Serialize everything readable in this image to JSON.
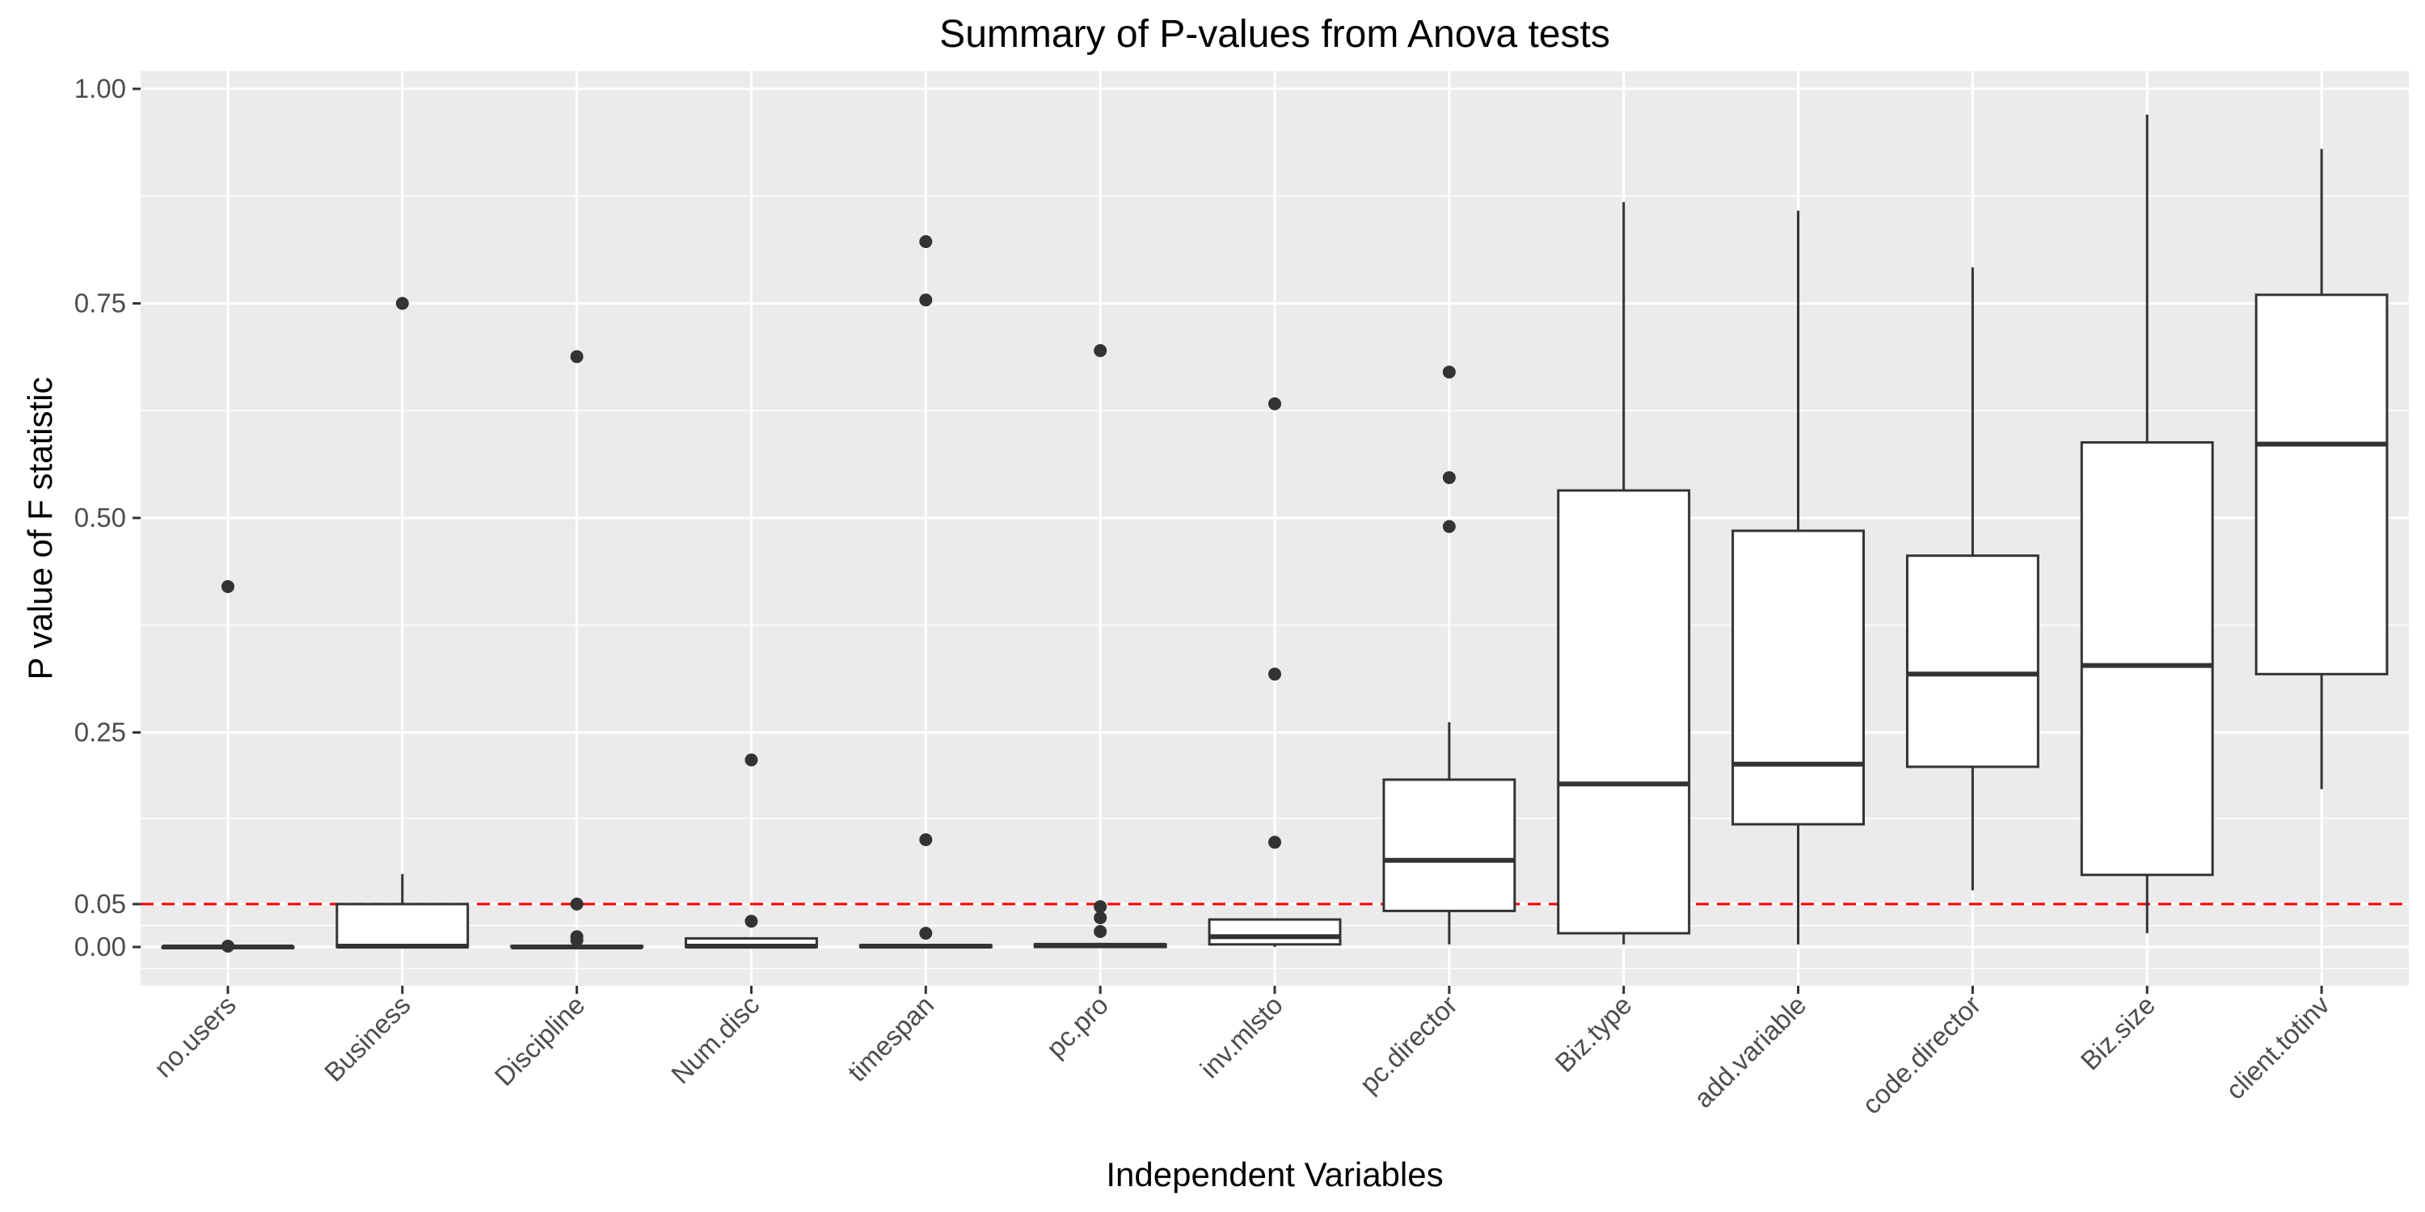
{
  "chart_data": {
    "type": "boxplot",
    "title": "Summary of P-values from Anova tests",
    "xlabel": "Independent Variables",
    "ylabel": "P value of F statistic",
    "ylim": [
      -0.05,
      1.03
    ],
    "y_ticks": [
      0.0,
      0.05,
      0.25,
      0.5,
      0.75,
      1.0
    ],
    "y_tick_labels": [
      "0.00",
      "0.05",
      "0.25",
      "0.50",
      "0.75",
      "1.00"
    ],
    "reference_line": {
      "y": 0.05,
      "color": "#ff0000",
      "style": "dashed"
    },
    "grid": true,
    "panel_background": "#ebebeb",
    "categories": [
      "no.users",
      "Business",
      "Discipline",
      "Num.disc",
      "timespan",
      "pc.pro",
      "inv.mlsto",
      "pc.director",
      "Biz.type",
      "add.variable",
      "code.director",
      "Biz.size",
      "client.totinv"
    ],
    "boxes": [
      {
        "category": "no.users",
        "lower_whisker": 0.0,
        "q1": 0.0,
        "median": 0.0,
        "q3": 0.0,
        "upper_whisker": 0.0,
        "outliers": [
          0.42,
          0.001
        ]
      },
      {
        "category": "Business",
        "lower_whisker": 0.0,
        "q1": 0.0,
        "median": 0.001,
        "q3": 0.05,
        "upper_whisker": 0.085,
        "outliers": [
          0.75
        ]
      },
      {
        "category": "Discipline",
        "lower_whisker": 0.0,
        "q1": 0.0,
        "median": 0.0,
        "q3": 0.001,
        "upper_whisker": 0.003,
        "outliers": [
          0.688,
          0.05,
          0.012,
          0.008
        ]
      },
      {
        "category": "Num.disc",
        "lower_whisker": 0.0,
        "q1": 0.0,
        "median": 0.001,
        "q3": 0.01,
        "upper_whisker": 0.01,
        "outliers": [
          0.218,
          0.03
        ]
      },
      {
        "category": "timespan",
        "lower_whisker": 0.0,
        "q1": 0.0,
        "median": 0.001,
        "q3": 0.002,
        "upper_whisker": 0.003,
        "outliers": [
          0.822,
          0.754,
          0.125,
          0.016
        ]
      },
      {
        "category": "pc.pro",
        "lower_whisker": 0.0,
        "q1": 0.0,
        "median": 0.002,
        "q3": 0.003,
        "upper_whisker": 0.005,
        "outliers": [
          0.695,
          0.047,
          0.034,
          0.018
        ]
      },
      {
        "category": "inv.mlsto",
        "lower_whisker": 0.0,
        "q1": 0.003,
        "median": 0.012,
        "q3": 0.032,
        "upper_whisker": 0.032,
        "outliers": [
          0.633,
          0.318,
          0.122
        ]
      },
      {
        "category": "pc.director",
        "lower_whisker": 0.003,
        "q1": 0.042,
        "median": 0.101,
        "q3": 0.195,
        "upper_whisker": 0.262,
        "outliers": [
          0.67,
          0.547,
          0.49
        ]
      },
      {
        "category": "Biz.type",
        "lower_whisker": 0.003,
        "q1": 0.016,
        "median": 0.19,
        "q3": 0.532,
        "upper_whisker": 0.868,
        "outliers": []
      },
      {
        "category": "add.variable",
        "lower_whisker": 0.003,
        "q1": 0.143,
        "median": 0.213,
        "q3": 0.485,
        "upper_whisker": 0.858,
        "outliers": []
      },
      {
        "category": "code.director",
        "lower_whisker": 0.066,
        "q1": 0.21,
        "median": 0.318,
        "q3": 0.456,
        "upper_whisker": 0.792,
        "outliers": []
      },
      {
        "category": "Biz.size",
        "lower_whisker": 0.016,
        "q1": 0.084,
        "median": 0.328,
        "q3": 0.588,
        "upper_whisker": 0.97,
        "outliers": []
      },
      {
        "category": "client.totinv",
        "lower_whisker": 0.184,
        "q1": 0.318,
        "median": 0.586,
        "q3": 0.76,
        "upper_whisker": 0.93,
        "outliers": []
      }
    ]
  }
}
